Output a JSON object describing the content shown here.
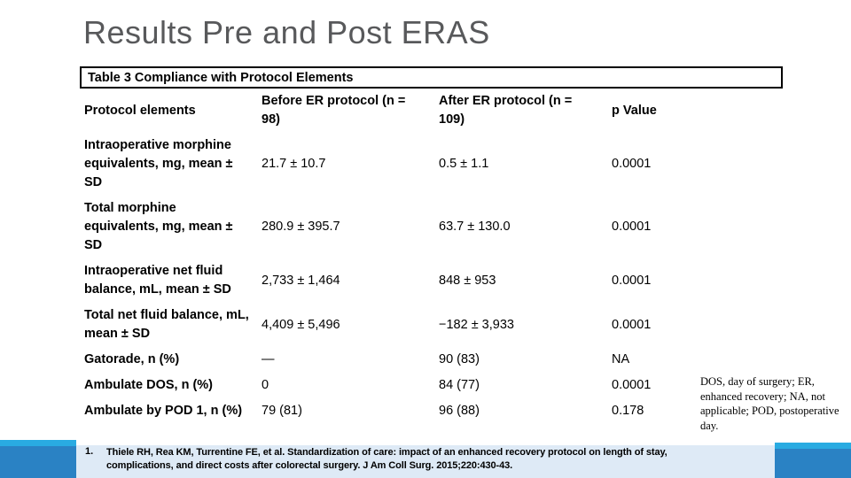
{
  "slide": {
    "title": "Results Pre and Post ERAS"
  },
  "table": {
    "caption": "Table 3 Compliance with Protocol Elements",
    "columns": {
      "c0": "Protocol elements",
      "c1": "Before ER protocol (n = 98)",
      "c2": "After ER protocol (n = 109)",
      "c3": "p Value"
    },
    "rows": [
      {
        "label": "Intraoperative morphine equivalents, mg, mean ± SD",
        "before": "21.7 ± 10.7",
        "after": "0.5 ± 1.1",
        "p": "0.0001"
      },
      {
        "label": "Total morphine equivalents, mg, mean ± SD",
        "before": "280.9 ± 395.7",
        "after": "63.7 ± 130.0",
        "p": "0.0001"
      },
      {
        "label": "Intraoperative net fluid balance, mL, mean ± SD",
        "before": "2,733 ± 1,464",
        "after": "848 ± 953",
        "p": "0.0001"
      },
      {
        "label": "Total net fluid balance, mL, mean ± SD",
        "before": "4,409 ± 5,496",
        "after": "−182 ± 3,933",
        "p": "0.0001"
      },
      {
        "label": "Gatorade, n (%)",
        "before": "—",
        "after": "90 (83)",
        "p": "NA"
      },
      {
        "label": "Ambulate DOS, n (%)",
        "before": "0",
        "after": "84 (77)",
        "p": "0.0001"
      },
      {
        "label": "Ambulate by POD 1, n (%)",
        "before": "79 (81)",
        "after": "96 (88)",
        "p": "0.178"
      }
    ],
    "footnote": "DOS, day of surgery; ER, enhanced recovery; NA, not applicable; POD, postoperative day."
  },
  "references": {
    "number": "1.",
    "text": "Thiele RH, Rea KM, Turrentine FE, et al. Standardization of care: impact of an enhanced recovery protocol on length of stay, complications, and direct costs after colorectal surgery. J Am Coll Surg. 2015;220:430-43."
  },
  "colors": {
    "accent_cyan": "#29abe2",
    "accent_blue": "#2a82c4",
    "reference_bg": "#deeaf6",
    "title_gray": "#58595b"
  }
}
